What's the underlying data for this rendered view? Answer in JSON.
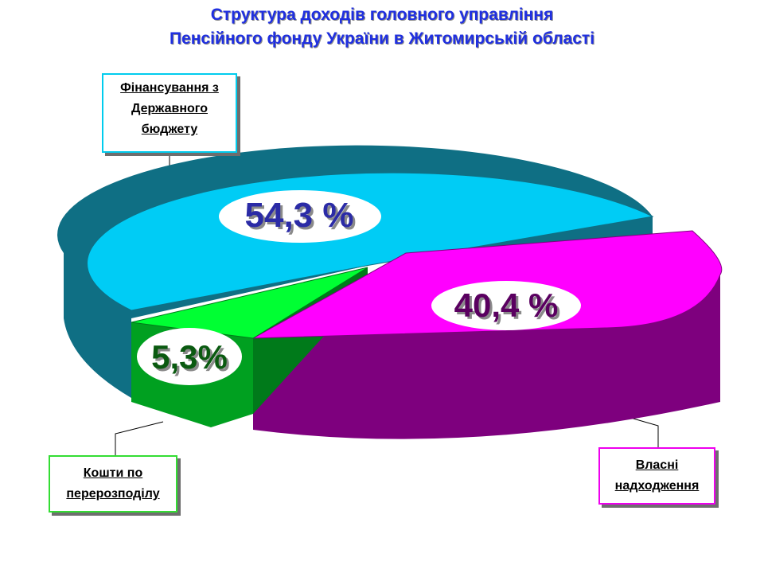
{
  "title": {
    "line1": "Структура доходів головного управління",
    "line2": "Пенсійного фонду України в Житомирській області"
  },
  "colors": {
    "state_budget": "#00ccf5",
    "own_revenue": "#ff00ff",
    "redistribution": "#00ff33",
    "title": "#1f2fe0"
  },
  "chart_data": {
    "type": "pie",
    "title": "Структура доходів головного управління Пенсійного фонду України в Житомирській області",
    "slices": [
      {
        "label": "Фінансування з Державного бюджету",
        "value": 54.3,
        "display": "54,3 %"
      },
      {
        "label": "Власні надходження",
        "value": 40.4,
        "display": "40,4 %"
      },
      {
        "label": "Кошти по перерозподілу",
        "value": 5.3,
        "display": "5,3%"
      }
    ],
    "legend": "none",
    "style": "3d-exploded"
  },
  "labels": {
    "state_budget": "Фінансування з\nДержавного\nбюджету",
    "redistribution": "Кошти по\nперерозподілу",
    "own_revenue": "Власні\nнадходження"
  }
}
